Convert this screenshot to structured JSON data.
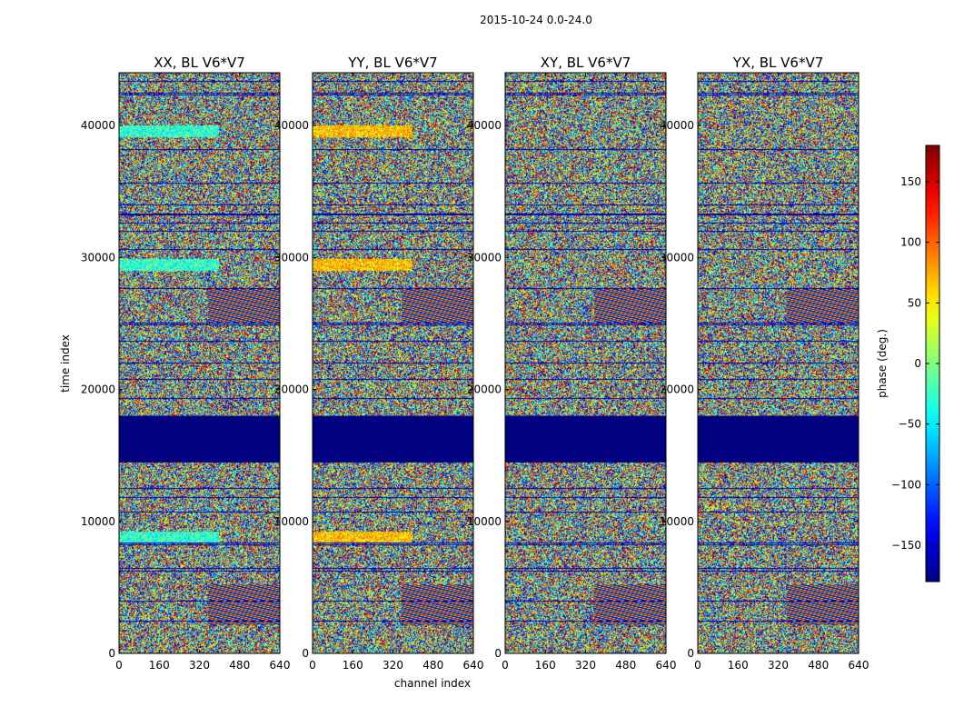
{
  "chart_data": {
    "type": "heatmap",
    "suptitle": "2015-10-24 0.0-24.0",
    "xlabel": "channel index",
    "ylabel": "time index",
    "xlim": [
      0,
      640
    ],
    "ylim": [
      0,
      44000
    ],
    "x_ticks": [
      0,
      160,
      320,
      480,
      640
    ],
    "y_ticks": [
      0,
      10000,
      20000,
      30000,
      40000
    ],
    "colormap": "jet",
    "colorbar": {
      "label": "phase (deg.)",
      "range": [
        -180,
        180
      ],
      "ticks": [
        150,
        100,
        50,
        0,
        -50,
        -100,
        -150
      ],
      "tick_labels": [
        "150",
        "100",
        "50",
        "0",
        "−50",
        "−100",
        "−150"
      ]
    },
    "panels": [
      {
        "title": "XX, BL V6*V7",
        "pattern": "XX"
      },
      {
        "title": "YY, BL V6*V7",
        "pattern": "YY"
      },
      {
        "title": "XY, BL V6*V7",
        "pattern": "XY"
      },
      {
        "title": "YX, BL V6*V7",
        "pattern": "YX"
      }
    ],
    "flagged_time_range": [
      14500,
      18000
    ],
    "flagged_value_deg": -180
  },
  "colors": {
    "flagged": "#000080",
    "frame": "#000000"
  }
}
